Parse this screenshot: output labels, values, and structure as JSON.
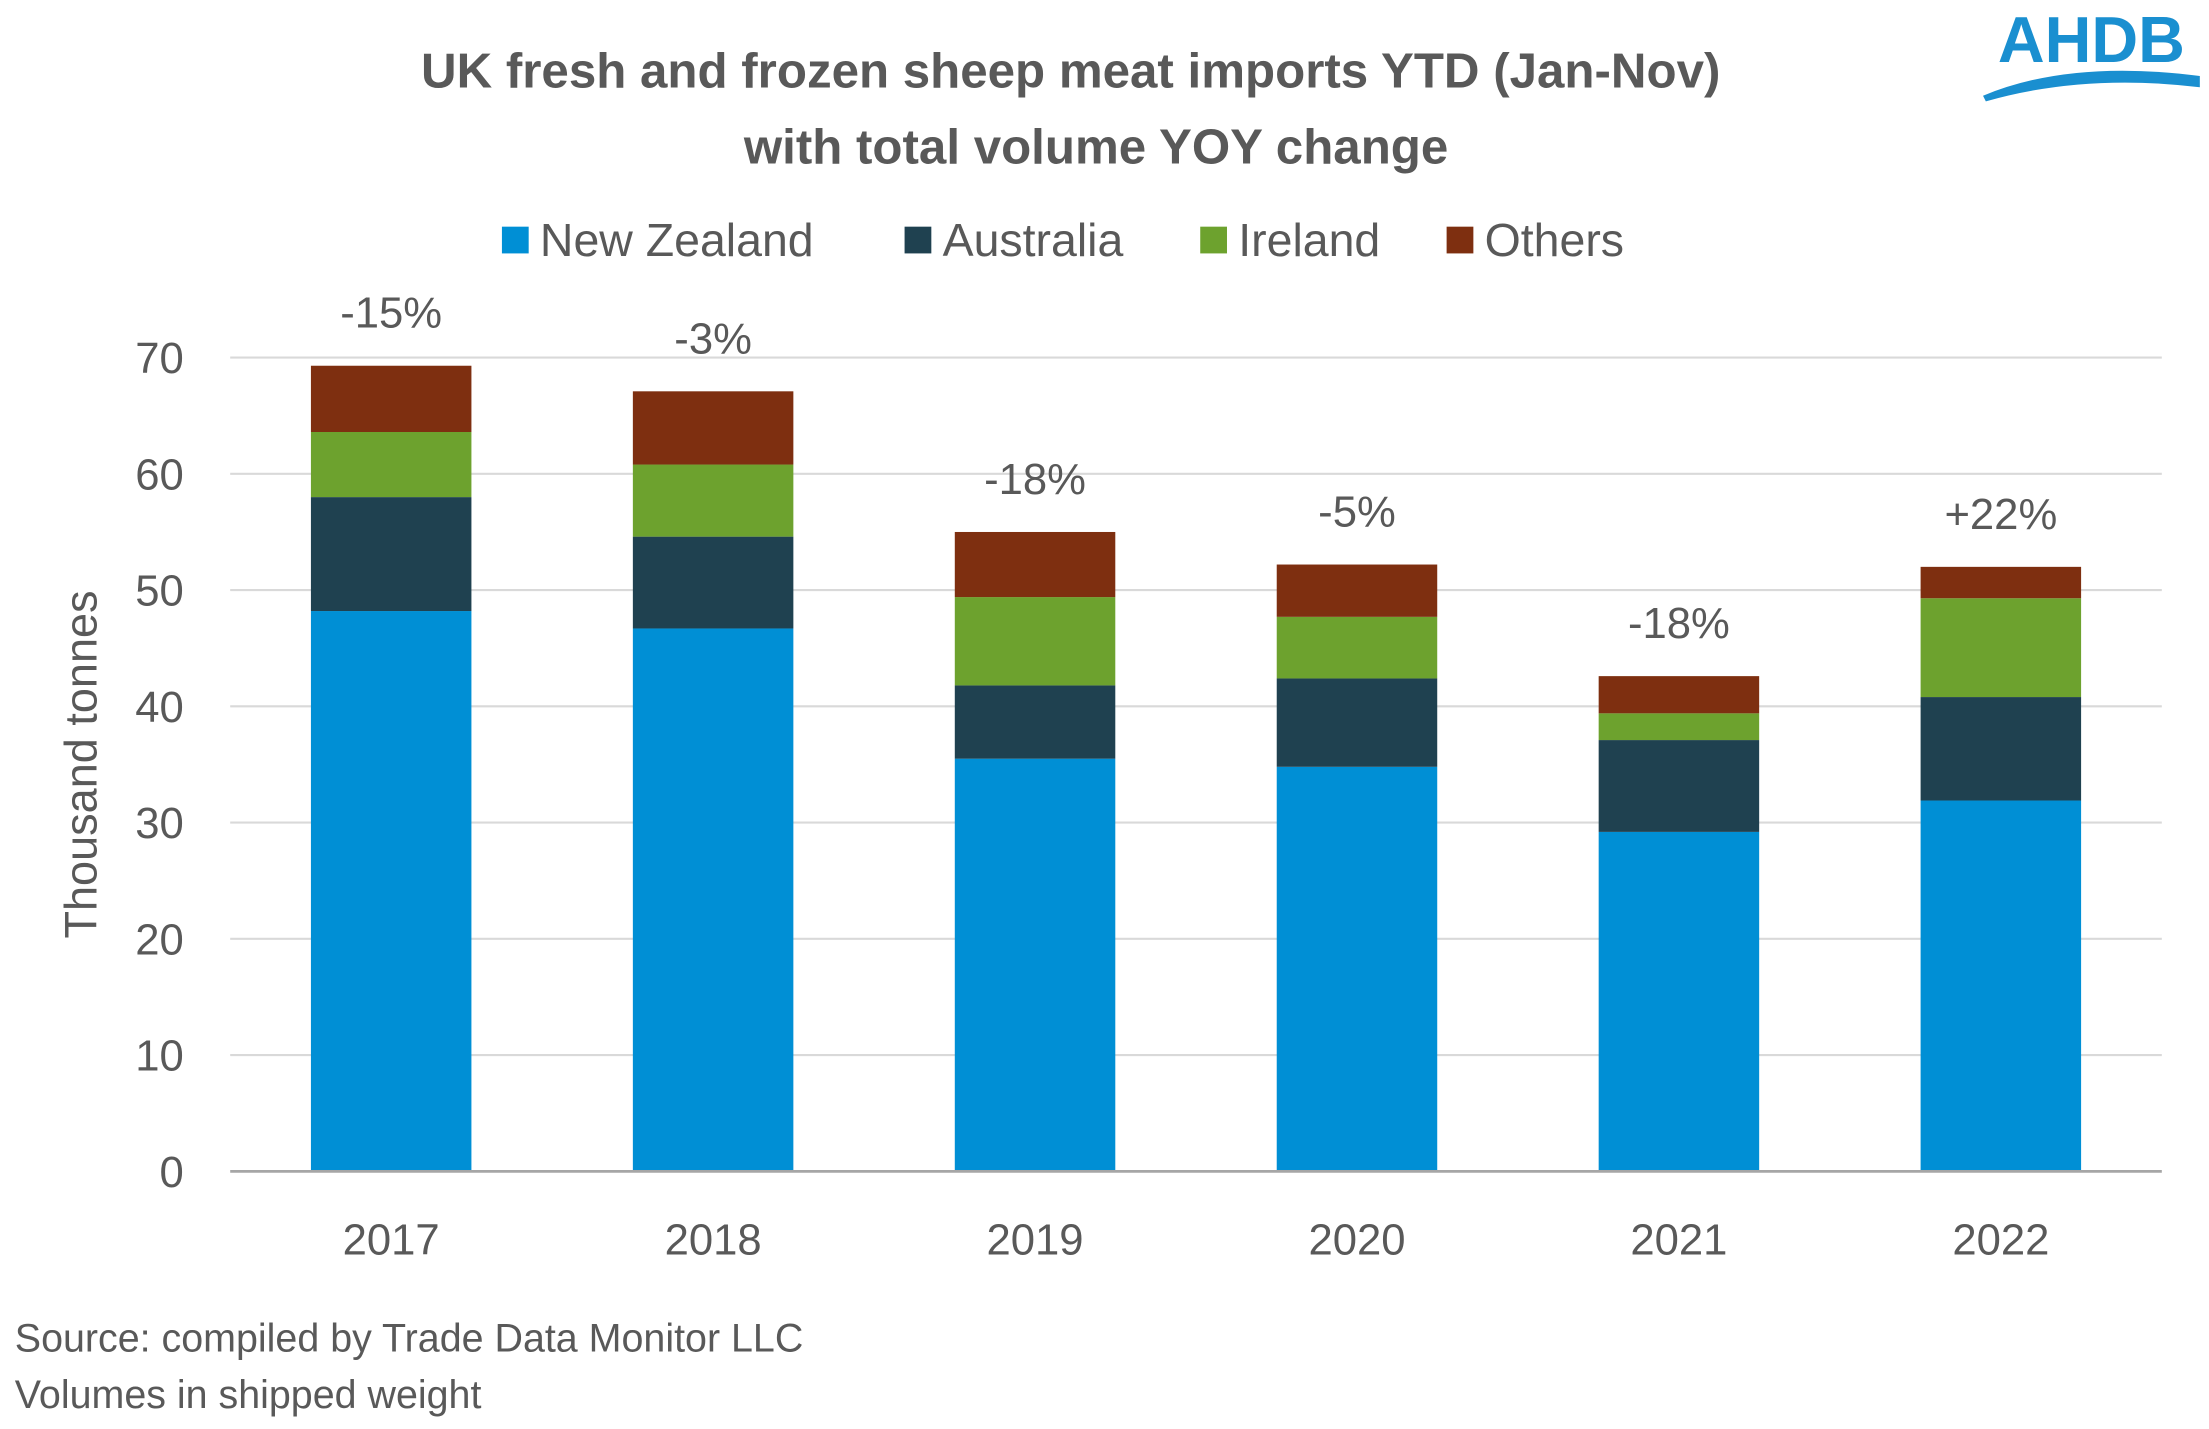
{
  "logo": {
    "text": "AHDB",
    "color": "#1a8fd0"
  },
  "chart_data": {
    "type": "bar",
    "stacked": true,
    "title": "UK fresh and frozen sheep meat imports YTD (Jan-Nov)",
    "subtitle": "with total volume YOY change",
    "xlabel": "",
    "ylabel": "Thousand tonnes",
    "ylim": [
      0,
      70
    ],
    "yticks": [
      "0",
      "10",
      "20",
      "30",
      "40",
      "50",
      "60",
      "70"
    ],
    "grid": true,
    "legend": "top",
    "categories": [
      "2017",
      "2018",
      "2019",
      "2020",
      "2021",
      "2022"
    ],
    "series": [
      {
        "name": "New Zealand",
        "color": "#008fd5",
        "values": [
          48.2,
          46.7,
          35.5,
          34.8,
          29.2,
          31.9
        ]
      },
      {
        "name": "Australia",
        "color": "#1f4150",
        "values": [
          9.8,
          7.9,
          6.3,
          7.6,
          7.9,
          8.9
        ]
      },
      {
        "name": "Ireland",
        "color": "#6da22e",
        "values": [
          5.6,
          6.2,
          7.6,
          5.3,
          2.3,
          8.5
        ]
      },
      {
        "name": "Others",
        "color": "#7e2f10",
        "values": [
          5.7,
          6.3,
          5.6,
          4.5,
          3.2,
          2.7
        ]
      }
    ],
    "annotations": [
      "-15%",
      "-3%",
      "-18%",
      "-5%",
      "-18%",
      "+22%"
    ]
  },
  "footnotes": [
    "Source: compiled by Trade Data Monitor LLC",
    "Volumes in shipped weight"
  ]
}
